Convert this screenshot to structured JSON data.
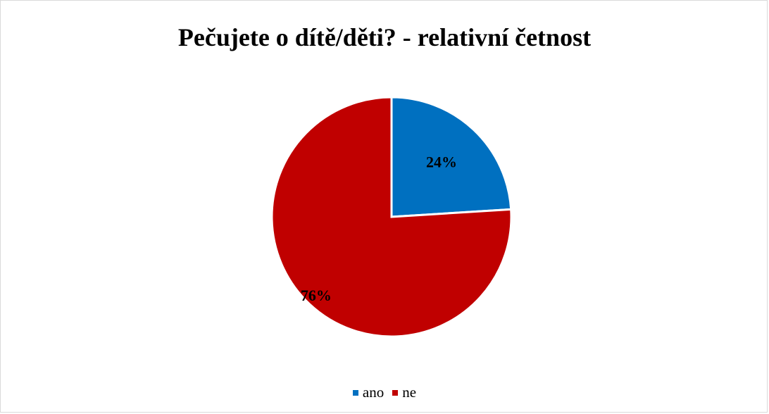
{
  "chart_data": {
    "type": "pie",
    "title": "Pečujete o dítě/děti? - relativní četnost",
    "categories": [
      "ano",
      "ne"
    ],
    "values": [
      24,
      76
    ],
    "data_labels": [
      "24%",
      "76%"
    ],
    "colors": [
      "#0070c0",
      "#c00000"
    ],
    "legend": {
      "placement": "bottom",
      "entries": [
        "ano",
        "ne"
      ]
    }
  }
}
